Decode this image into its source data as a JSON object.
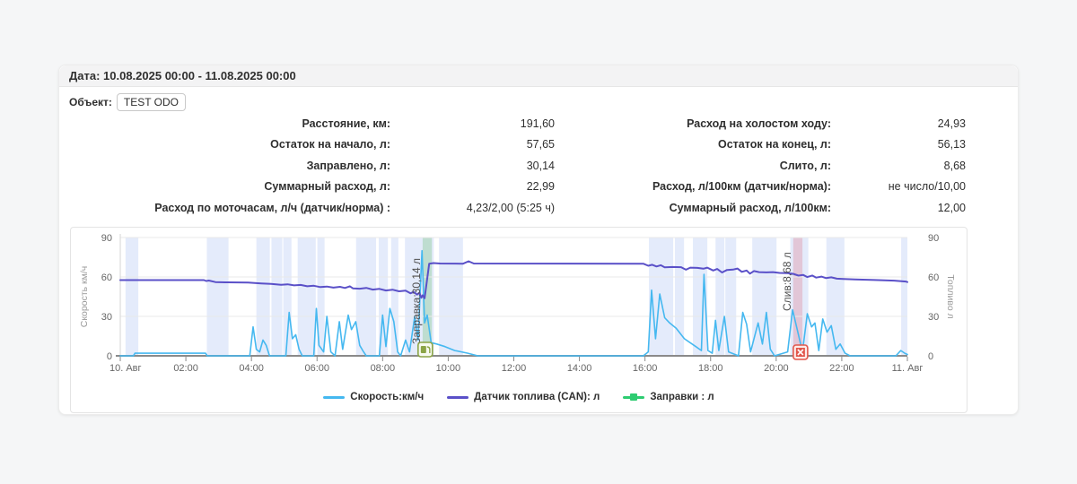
{
  "report": {
    "date_label": "Дата: 10.08.2025 00:00 - 11.08.2025 00:00",
    "object_label": "Объект:",
    "object_name": "TEST ODO",
    "stats": {
      "rows": [
        {
          "l1": "Расстояние, км:",
          "v1": "191,60",
          "l2": "Расход на холостом ходу:",
          "v2": "24,93"
        },
        {
          "l1": "Остаток на начало, л:",
          "v1": "57,65",
          "l2": "Остаток на конец, л:",
          "v2": "56,13"
        },
        {
          "l1": "Заправлено, л:",
          "v1": "30,14",
          "l2": "Слито, л:",
          "v2": "8,68"
        },
        {
          "l1": "Суммарный расход, л:",
          "v1": "22,99",
          "l2": "Расход, л/100км (датчик/норма):",
          "v2": "не число/10,00"
        },
        {
          "l1": "Расход по моточасам, л/ч (датчик/норма) :",
          "v1": "4,23/2,00 (5:25 ч)",
          "l2": "Суммарный расход, л/100км:",
          "v2": "12,00"
        }
      ]
    }
  },
  "chart_data": {
    "type": "line",
    "x_axis": {
      "labels": [
        "10. Авг",
        "02:00",
        "04:00",
        "06:00",
        "08:00",
        "10:00",
        "12:00",
        "14:00",
        "16:00",
        "18:00",
        "20:00",
        "22:00",
        "11. Авг"
      ],
      "hours": [
        0,
        2,
        4,
        6,
        8,
        10,
        12,
        14,
        16,
        18,
        20,
        22,
        24
      ],
      "range_hours": [
        0,
        24
      ]
    },
    "y_left": {
      "title": "Скорость км/ч",
      "ticks": [
        0,
        30,
        60,
        90
      ],
      "range": [
        0,
        90
      ]
    },
    "y_right": {
      "title": "Топливо л",
      "ticks": [
        0,
        30,
        60,
        90
      ],
      "range": [
        0,
        90
      ]
    },
    "grid": true,
    "legend_position": "bottom",
    "colors": {
      "grid": "#e9e9e9",
      "axis": "#8a8a8a",
      "tick_text": "#666666",
      "axis_title": "#999999",
      "annotation_text": "#4f4f4f",
      "trip_band": "rgba(205,218,247,0.55)"
    },
    "trip_bands": [
      [
        0.16,
        0.55
      ],
      [
        2.64,
        3.3
      ],
      [
        4.15,
        4.56
      ],
      [
        4.61,
        4.94
      ],
      [
        4.97,
        5.22
      ],
      [
        5.41,
        5.96
      ],
      [
        6.01,
        6.23
      ],
      [
        7.19,
        7.8
      ],
      [
        7.88,
        8.16
      ],
      [
        8.26,
        8.48
      ],
      [
        8.68,
        9.56
      ],
      [
        9.72,
        10.45
      ],
      [
        16.12,
        16.86
      ],
      [
        16.91,
        17.19
      ],
      [
        17.46,
        17.9
      ],
      [
        18.15,
        18.42
      ],
      [
        18.45,
        18.78
      ],
      [
        19.27,
        20.01
      ],
      [
        20.43,
        20.98
      ],
      [
        21.53,
        22.08
      ],
      [
        23.81,
        24.0
      ]
    ],
    "series": [
      {
        "name": "Скорость:км/ч",
        "color": "#45b8f0",
        "width": 1.6,
        "points": [
          [
            0,
            0
          ],
          [
            0.4,
            0
          ],
          [
            0.45,
            2
          ],
          [
            2.6,
            2
          ],
          [
            2.65,
            0
          ],
          [
            3.95,
            0
          ],
          [
            4.05,
            22
          ],
          [
            4.15,
            5
          ],
          [
            4.25,
            3
          ],
          [
            4.35,
            12
          ],
          [
            4.45,
            8
          ],
          [
            4.55,
            0
          ],
          [
            5.05,
            0
          ],
          [
            5.15,
            33
          ],
          [
            5.25,
            13
          ],
          [
            5.35,
            16
          ],
          [
            5.45,
            5
          ],
          [
            5.55,
            0
          ],
          [
            5.9,
            0
          ],
          [
            5.98,
            36
          ],
          [
            6.06,
            8
          ],
          [
            6.2,
            3
          ],
          [
            6.3,
            30
          ],
          [
            6.42,
            3
          ],
          [
            6.55,
            0
          ],
          [
            6.68,
            26
          ],
          [
            6.78,
            5
          ],
          [
            6.95,
            31
          ],
          [
            7.05,
            20
          ],
          [
            7.18,
            26
          ],
          [
            7.3,
            8
          ],
          [
            7.42,
            3
          ],
          [
            7.5,
            0
          ],
          [
            7.9,
            0
          ],
          [
            8.0,
            31
          ],
          [
            8.1,
            7
          ],
          [
            8.22,
            36
          ],
          [
            8.34,
            26
          ],
          [
            8.46,
            3
          ],
          [
            8.55,
            0
          ],
          [
            8.7,
            12
          ],
          [
            8.82,
            3
          ],
          [
            8.98,
            30
          ],
          [
            9.08,
            12
          ],
          [
            9.2,
            80
          ],
          [
            9.28,
            25
          ],
          [
            9.36,
            31
          ],
          [
            9.48,
            10
          ],
          [
            9.65,
            9
          ],
          [
            9.9,
            7
          ],
          [
            10.2,
            4
          ],
          [
            10.6,
            2
          ],
          [
            10.9,
            0
          ],
          [
            15.95,
            0
          ],
          [
            16.1,
            3
          ],
          [
            16.2,
            50
          ],
          [
            16.32,
            13
          ],
          [
            16.45,
            47
          ],
          [
            16.6,
            29
          ],
          [
            16.75,
            25
          ],
          [
            16.95,
            21
          ],
          [
            17.2,
            13
          ],
          [
            17.55,
            7
          ],
          [
            17.72,
            4
          ],
          [
            17.8,
            62
          ],
          [
            17.92,
            4
          ],
          [
            18.05,
            2
          ],
          [
            18.15,
            27
          ],
          [
            18.25,
            4
          ],
          [
            18.42,
            30
          ],
          [
            18.55,
            3
          ],
          [
            18.85,
            0
          ],
          [
            18.98,
            33
          ],
          [
            19.1,
            24
          ],
          [
            19.22,
            3
          ],
          [
            19.45,
            25
          ],
          [
            19.58,
            9
          ],
          [
            19.7,
            33
          ],
          [
            19.82,
            5
          ],
          [
            19.95,
            0
          ],
          [
            20.35,
            3
          ],
          [
            20.5,
            35
          ],
          [
            20.65,
            19
          ],
          [
            20.8,
            3
          ],
          [
            20.95,
            32
          ],
          [
            21.08,
            22
          ],
          [
            21.18,
            25
          ],
          [
            21.3,
            4
          ],
          [
            21.42,
            28
          ],
          [
            21.55,
            18
          ],
          [
            21.68,
            23
          ],
          [
            21.82,
            5
          ],
          [
            21.95,
            9
          ],
          [
            22.1,
            2
          ],
          [
            22.25,
            0
          ],
          [
            23.65,
            0
          ],
          [
            23.8,
            4
          ],
          [
            23.92,
            2
          ],
          [
            24,
            1
          ]
        ]
      },
      {
        "name": "Датчик топлива (CAN): л",
        "color": "#5a50c8",
        "width": 2,
        "points": [
          [
            0,
            57.6
          ],
          [
            2.55,
            57.6
          ],
          [
            2.62,
            56.9
          ],
          [
            2.7,
            57.3
          ],
          [
            2.9,
            56.1
          ],
          [
            3.2,
            55.9
          ],
          [
            3.9,
            55.7
          ],
          [
            4.3,
            55.1
          ],
          [
            4.6,
            54.7
          ],
          [
            4.9,
            54.1
          ],
          [
            5.1,
            54.4
          ],
          [
            5.3,
            53.6
          ],
          [
            5.5,
            53.9
          ],
          [
            5.7,
            52.9
          ],
          [
            5.9,
            53.3
          ],
          [
            6.1,
            52.3
          ],
          [
            6.3,
            52.7
          ],
          [
            6.5,
            51.9
          ],
          [
            6.7,
            52.5
          ],
          [
            6.85,
            51.6
          ],
          [
            7.0,
            52.9
          ],
          [
            7.1,
            51.3
          ],
          [
            7.3,
            51.1
          ],
          [
            7.5,
            51.7
          ],
          [
            7.7,
            50.4
          ],
          [
            7.9,
            50.9
          ],
          [
            8.1,
            49.7
          ],
          [
            8.3,
            50.3
          ],
          [
            8.5,
            49.1
          ],
          [
            8.7,
            49.6
          ],
          [
            8.85,
            47.6
          ],
          [
            8.95,
            48.6
          ],
          [
            9.05,
            46.6
          ],
          [
            9.12,
            47.9
          ],
          [
            9.18,
            44.2
          ],
          [
            9.22,
            46.1
          ],
          [
            9.28,
            43.8
          ],
          [
            9.42,
            70.1
          ],
          [
            9.55,
            70.6
          ],
          [
            9.75,
            70.2
          ],
          [
            10.45,
            70.1
          ],
          [
            10.62,
            71.9
          ],
          [
            10.78,
            70.2
          ],
          [
            15.95,
            70.1
          ],
          [
            16.1,
            68.5
          ],
          [
            16.22,
            69.3
          ],
          [
            16.35,
            68.0
          ],
          [
            16.48,
            68.9
          ],
          [
            16.6,
            67.3
          ],
          [
            16.85,
            67.6
          ],
          [
            17.1,
            67.4
          ],
          [
            17.25,
            65.5
          ],
          [
            17.38,
            67.1
          ],
          [
            17.6,
            66.9
          ],
          [
            17.78,
            66.3
          ],
          [
            17.9,
            67.1
          ],
          [
            18.08,
            64.9
          ],
          [
            18.2,
            66.1
          ],
          [
            18.35,
            63.4
          ],
          [
            18.5,
            65.3
          ],
          [
            18.68,
            65.6
          ],
          [
            18.82,
            66.4
          ],
          [
            18.95,
            63.9
          ],
          [
            19.1,
            64.9
          ],
          [
            19.2,
            62.5
          ],
          [
            19.32,
            64.5
          ],
          [
            19.48,
            63.7
          ],
          [
            19.7,
            63.5
          ],
          [
            19.9,
            63.7
          ],
          [
            20.1,
            63.1
          ],
          [
            20.35,
            62.9
          ],
          [
            20.52,
            62.4
          ],
          [
            20.68,
            61.0
          ],
          [
            20.82,
            61.6
          ],
          [
            20.95,
            59.9
          ],
          [
            21.1,
            61.1
          ],
          [
            21.22,
            59.5
          ],
          [
            21.38,
            60.3
          ],
          [
            21.52,
            59.1
          ],
          [
            21.68,
            59.7
          ],
          [
            21.85,
            58.7
          ],
          [
            22.05,
            58.4
          ],
          [
            22.4,
            58.1
          ],
          [
            23.0,
            57.7
          ],
          [
            23.6,
            57.2
          ],
          [
            23.95,
            56.5
          ],
          [
            24,
            56.1
          ]
        ]
      },
      {
        "name": "Заправки : л",
        "color": "#2ecc71",
        "width": 2,
        "points": []
      }
    ],
    "events": [
      {
        "type": "refuel",
        "label": "Заправка:30,14 л",
        "time": 9.3,
        "band": [
          9.22,
          9.5
        ],
        "band_color": "rgba(120,195,130,0.35)",
        "icon": "fuel-pump-icon",
        "icon_color": "#8ba446",
        "label_bottom_y": 130
      },
      {
        "type": "drain",
        "label": "Слив:8,68 л",
        "time": 20.74,
        "band": [
          20.52,
          20.8
        ],
        "band_color": "rgba(225,120,140,0.32)",
        "icon": "drain-icon",
        "icon_color": "#e2574c",
        "label_bottom_y": 93
      }
    ]
  }
}
